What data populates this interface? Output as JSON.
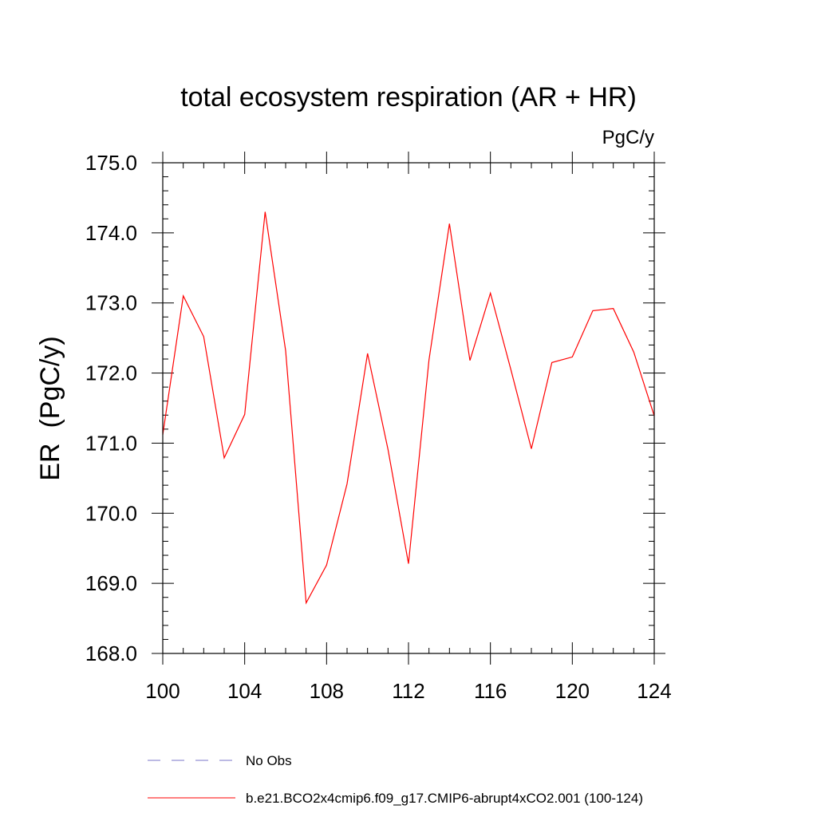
{
  "chart_data": {
    "type": "line",
    "title": "total ecosystem respiration (AR + HR)",
    "units_label": "PgC/y",
    "ylabel": "ER  (PgC/y)",
    "xlabel": "",
    "xlim": [
      100,
      124
    ],
    "ylim": [
      168.0,
      175.0
    ],
    "x_ticks": [
      "100",
      "104",
      "108",
      "112",
      "116",
      "120",
      "124"
    ],
    "y_ticks": [
      "168.0",
      "169.0",
      "170.0",
      "171.0",
      "172.0",
      "173.0",
      "174.0",
      "175.0"
    ],
    "grid": false,
    "legend_position": "bottom",
    "x": [
      100,
      101,
      102,
      103,
      104,
      105,
      106,
      107,
      108,
      109,
      110,
      111,
      112,
      113,
      114,
      115,
      116,
      117,
      118,
      119,
      120,
      121,
      122,
      123,
      124
    ],
    "series": [
      {
        "name": "b.e21.BCO2x4cmip6.f09_g17.CMIP6-abrupt4xCO2.001 (100-124)",
        "color": "#ff0000",
        "style": "solid",
        "values": [
          171.12,
          173.1,
          172.52,
          170.79,
          171.41,
          174.3,
          172.32,
          168.72,
          169.26,
          170.42,
          172.28,
          170.91,
          169.28,
          172.19,
          174.13,
          172.18,
          173.14,
          172.05,
          170.92,
          172.15,
          172.23,
          172.89,
          172.92,
          172.3,
          171.39
        ]
      }
    ],
    "legend": [
      {
        "label": "No Obs",
        "color": "#7a74c8",
        "style": "dashed"
      },
      {
        "label": "b.e21.BCO2x4cmip6.f09_g17.CMIP6-abrupt4xCO2.001 (100-124)",
        "color": "#ff0000",
        "style": "solid"
      }
    ]
  }
}
